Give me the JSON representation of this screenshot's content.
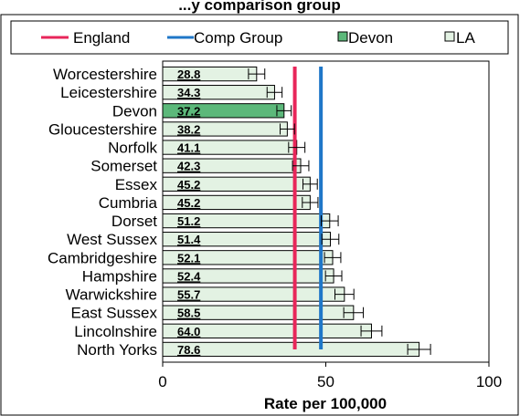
{
  "chart_data": {
    "type": "bar",
    "orientation": "horizontal",
    "title": "...y comparison group",
    "xlabel": "Rate per 100,000",
    "ylabel": "",
    "xlim": [
      0,
      100
    ],
    "xticks": [
      0,
      50,
      100
    ],
    "grid": false,
    "legend_position": "top",
    "categories": [
      "Worcestershire",
      "Leicestershire",
      "Devon",
      "Gloucestershire",
      "Norfolk",
      "Somerset",
      "Essex",
      "Cumbria",
      "Dorset",
      "West Sussex",
      "Cambridgeshire",
      "Hampshire",
      "Warwickshire",
      "East Sussex",
      "Lincolnshire",
      "North Yorks"
    ],
    "values": [
      28.8,
      34.3,
      37.2,
      38.2,
      41.1,
      42.3,
      45.2,
      45.2,
      51.2,
      51.4,
      52.1,
      52.4,
      55.7,
      58.5,
      64.0,
      78.6
    ],
    "value_labels": [
      "28.8",
      "34.3",
      "37.2",
      "38.2",
      "41.1",
      "42.3",
      "45.2",
      "45.2",
      "51.2",
      "51.4",
      "52.1",
      "52.4",
      "55.7",
      "58.5",
      "64.0",
      "78.6"
    ],
    "error_low": [
      26.3,
      32.0,
      35.0,
      36.0,
      38.6,
      39.8,
      43.0,
      42.8,
      48.6,
      48.8,
      49.6,
      49.9,
      52.8,
      55.5,
      60.8,
      75.1
    ],
    "error_high": [
      31.3,
      36.6,
      39.4,
      40.4,
      43.6,
      44.8,
      47.4,
      47.6,
      53.8,
      54.0,
      54.6,
      54.9,
      58.6,
      61.5,
      67.2,
      82.1
    ],
    "highlight_category": "Devon",
    "reference_lines": [
      {
        "name": "England",
        "value": 40.5
      },
      {
        "name": "Comp Group",
        "value": 48.5
      }
    ],
    "legend": [
      "England",
      "Comp Group",
      "Devon",
      "LA"
    ],
    "colors": {
      "england": "#e8265a",
      "comp_group": "#1f77c8",
      "devon_fill": "#5cb87a",
      "la_fill": "#e3f2e3",
      "bar_stroke": "#000000"
    }
  }
}
